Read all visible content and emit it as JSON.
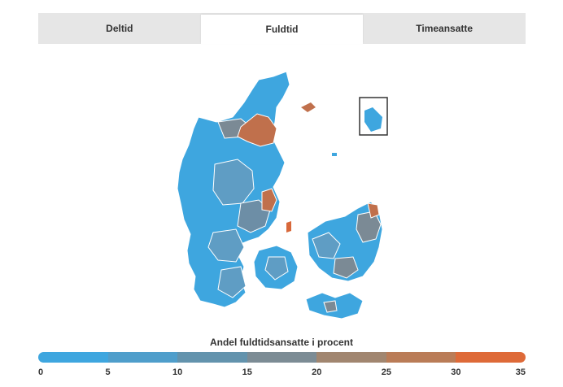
{
  "tabs": [
    {
      "label": "Deltid",
      "active": false
    },
    {
      "label": "Fuldtid",
      "active": true
    },
    {
      "label": "Timeansatte",
      "active": false
    }
  ],
  "legend": {
    "title": "Andel fuldtidsansatte i procent",
    "ticks": [
      "0",
      "5",
      "10",
      "15",
      "20",
      "25",
      "30",
      "35"
    ],
    "colors": [
      "#3ea6df",
      "#4f9ecb",
      "#6393ad",
      "#7c8c95",
      "#a18670",
      "#ba7c57",
      "#de6a38"
    ]
  },
  "map": {
    "colors": {
      "blue": "#3ea6df",
      "steel": "#5f9dc4",
      "slate": "#6d8ea6",
      "gray": "#7b8a95",
      "rust": "#c0704c",
      "orange": "#d8683a"
    }
  }
}
